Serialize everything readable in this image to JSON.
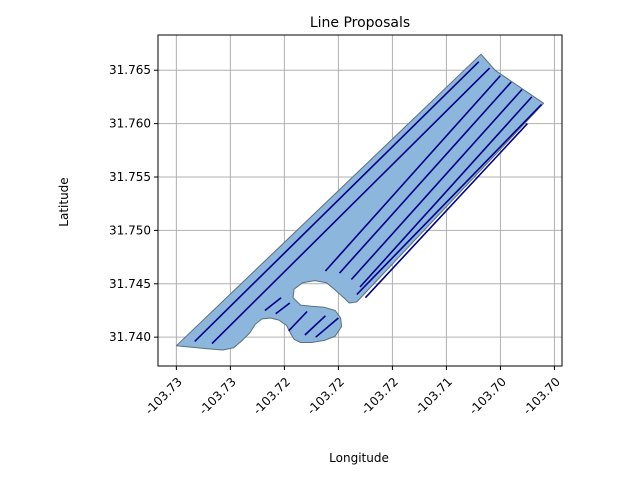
{
  "chart_data": {
    "type": "line",
    "title": "Line Proposals",
    "xlabel": "Longitude",
    "ylabel": "Latitude",
    "xlim": [
      -103.7332,
      -103.6958
    ],
    "ylim": [
      31.7373,
      31.7683
    ],
    "x_ticks": [
      {
        "value": -103.7315,
        "label": "-103.73"
      },
      {
        "value": -103.7265,
        "label": "-103.73"
      },
      {
        "value": -103.7215,
        "label": "-103.72"
      },
      {
        "value": -103.7165,
        "label": "-103.72"
      },
      {
        "value": -103.7115,
        "label": "-103.72"
      },
      {
        "value": -103.7065,
        "label": "-103.71"
      },
      {
        "value": -103.7015,
        "label": "-103.70"
      },
      {
        "value": -103.6965,
        "label": "-103.70"
      }
    ],
    "y_ticks": [
      {
        "value": 31.74,
        "label": "31.740"
      },
      {
        "value": 31.745,
        "label": "31.745"
      },
      {
        "value": 31.75,
        "label": "31.750"
      },
      {
        "value": 31.755,
        "label": "31.755"
      },
      {
        "value": 31.76,
        "label": "31.760"
      },
      {
        "value": 31.765,
        "label": "31.765"
      }
    ],
    "grid": true,
    "polygon": {
      "fill": "#8cb6db",
      "edge": "#5a6f7f",
      "points": [
        [
          -103.7315,
          31.7392
        ],
        [
          -103.7285,
          31.7389
        ],
        [
          -103.7272,
          31.7388
        ],
        [
          -103.7262,
          31.739
        ],
        [
          -103.7255,
          31.7396
        ],
        [
          -103.7247,
          31.7404
        ],
        [
          -103.7242,
          31.7412
        ],
        [
          -103.7236,
          31.7417
        ],
        [
          -103.7228,
          31.7418
        ],
        [
          -103.722,
          31.7416
        ],
        [
          -103.7213,
          31.7411
        ],
        [
          -103.7209,
          31.7403
        ],
        [
          -103.7206,
          31.7398
        ],
        [
          -103.72,
          31.7395
        ],
        [
          -103.719,
          31.7395
        ],
        [
          -103.7178,
          31.7397
        ],
        [
          -103.7168,
          31.7401
        ],
        [
          -103.7162,
          31.741
        ],
        [
          -103.7163,
          31.7418
        ],
        [
          -103.7168,
          31.7425
        ],
        [
          -103.7178,
          31.7428
        ],
        [
          -103.719,
          31.7429
        ],
        [
          -103.72,
          31.743
        ],
        [
          -103.7207,
          31.7437
        ],
        [
          -103.7206,
          31.7445
        ],
        [
          -103.7198,
          31.7451
        ],
        [
          -103.7187,
          31.7453
        ],
        [
          -103.7176,
          31.7451
        ],
        [
          -103.717,
          31.7446
        ],
        [
          -103.716,
          31.7437
        ],
        [
          -103.7155,
          31.7432
        ],
        [
          -103.7148,
          31.7433
        ],
        [
          -103.6975,
          31.7619
        ],
        [
          -103.702,
          31.765
        ],
        [
          -103.7033,
          31.7665
        ]
      ]
    },
    "series_color": "#00008b",
    "series": [
      {
        "x": [
          -103.7298,
          -103.7035
        ],
        "y": [
          31.7396,
          31.7658
        ]
      },
      {
        "x": [
          -103.7282,
          -103.7025
        ],
        "y": [
          31.7394,
          31.7652
        ]
      },
      {
        "x": [
          -103.7177,
          -103.7015
        ],
        "y": [
          31.7462,
          31.7645
        ]
      },
      {
        "x": [
          -103.7164,
          -103.7005
        ],
        "y": [
          31.746,
          31.7639
        ]
      },
      {
        "x": [
          -103.7153,
          -103.6995
        ],
        "y": [
          31.7454,
          31.7632
        ]
      },
      {
        "x": [
          -103.7145,
          -103.6986
        ],
        "y": [
          31.7447,
          31.7625
        ]
      },
      {
        "x": [
          -103.7148,
          -103.6977
        ],
        "y": [
          31.744,
          31.7618
        ]
      },
      {
        "x": [
          -103.714,
          -103.699
        ],
        "y": [
          31.7437,
          31.76
        ]
      },
      {
        "x": [
          -103.7233,
          -103.7218
        ],
        "y": [
          31.7425,
          31.7437
        ]
      },
      {
        "x": [
          -103.7223,
          -103.721
        ],
        "y": [
          31.7422,
          31.7432
        ]
      },
      {
        "x": [
          -103.7211,
          -103.7194
        ],
        "y": [
          31.7406,
          31.7424
        ]
      },
      {
        "x": [
          -103.7196,
          -103.7177
        ],
        "y": [
          31.7402,
          31.742
        ]
      },
      {
        "x": [
          -103.7186,
          -103.7165
        ],
        "y": [
          31.74,
          31.7418
        ]
      }
    ]
  }
}
